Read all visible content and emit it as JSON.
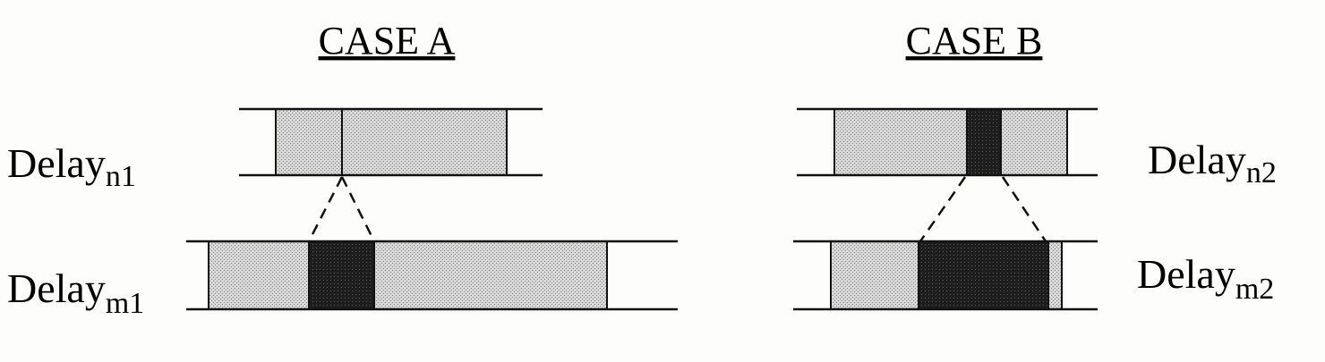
{
  "colors": {
    "light_fill": "#d2d2d2",
    "dark_fill": "#1e1e1e",
    "line": "#111111"
  },
  "case_a": {
    "title": "CASE A",
    "top_label": {
      "base": "Delay",
      "sub": "n1"
    },
    "bottom_label": {
      "base": "Delay",
      "sub": "m1"
    }
  },
  "case_b": {
    "title": "CASE B",
    "top_label": {
      "base": "Delay",
      "sub": "n2"
    },
    "bottom_label": {
      "base": "Delay",
      "sub": "m2"
    }
  }
}
